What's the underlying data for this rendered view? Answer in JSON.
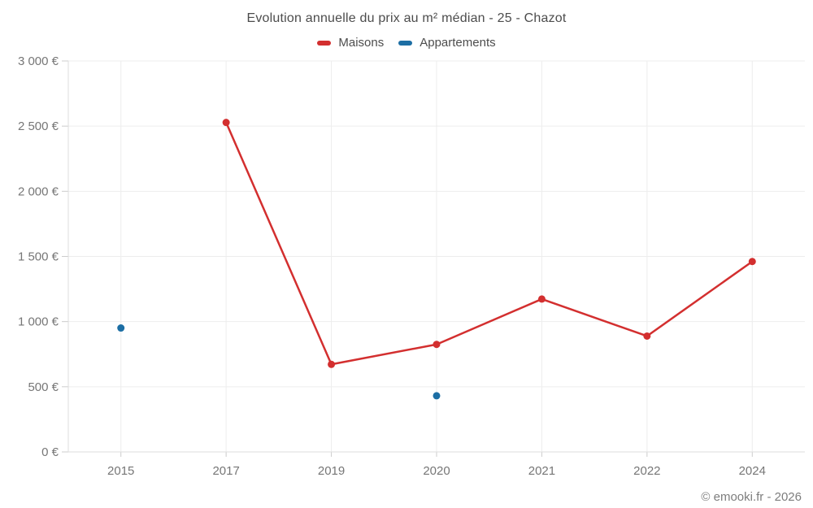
{
  "title": "Evolution annuelle du prix au m² médian - 25 - Chazot",
  "legend": {
    "items": [
      {
        "label": "Maisons",
        "color": "#d32f2f"
      },
      {
        "label": "Appartements",
        "color": "#1c6ea4"
      }
    ]
  },
  "watermark": "© emooki.fr - 2026",
  "chart_data": {
    "type": "line",
    "title": "Evolution annuelle du prix au m² médian - 25 - Chazot",
    "categories": [
      "2015",
      "2017",
      "2019",
      "2020",
      "2021",
      "2022",
      "2024"
    ],
    "series": [
      {
        "name": "Maisons",
        "color": "#d32f2f",
        "show_line": true,
        "values": [
          null,
          2528,
          672,
          825,
          1173,
          889,
          1461
        ]
      },
      {
        "name": "Appartements",
        "color": "#1c6ea4",
        "show_line": false,
        "values": [
          951,
          null,
          null,
          431,
          null,
          null,
          null
        ]
      }
    ],
    "xlabel": "",
    "ylabel": "",
    "ylim": [
      0,
      3000
    ],
    "ytick_step": 500,
    "ytick_labels": [
      "0 €",
      "500 €",
      "1 000 €",
      "1 500 €",
      "2 000 €",
      "2 500 €",
      "3 000 €"
    ],
    "grid": true,
    "legend_position": "top",
    "colors": {
      "grid_line": "#ededed",
      "axis_line": "#dedede",
      "tick_mark": "#cccccc",
      "tick_label": "#767676",
      "title_text": "#4c4c4c",
      "legend_text": "#4d4d4d",
      "background": "#ffffff"
    }
  }
}
